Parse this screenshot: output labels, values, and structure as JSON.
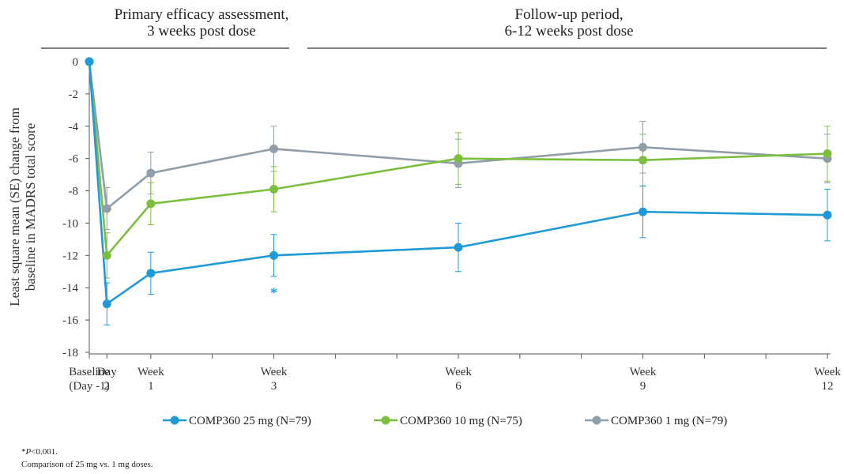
{
  "periods": [
    {
      "line1": "Primary efficacy assessment,",
      "line2": "3 weeks post dose"
    },
    {
      "line1": "Follow-up period,",
      "line2": "6-12 weeks post dose"
    }
  ],
  "footnotes": {
    "significance_prefix": "*",
    "significance_p": "P",
    "significance_rest": "<0.001.",
    "comparison": "Comparison of 25 mg vs. 1 mg doses."
  },
  "chart_data": {
    "type": "line",
    "ylabel_line1": "Least square mean (SE) change from",
    "ylabel_line2": "baseline in MADRS total score",
    "ylim": [
      -18,
      0
    ],
    "yticks": [
      0,
      -2,
      -4,
      -6,
      -8,
      -10,
      -12,
      -14,
      -16,
      -18
    ],
    "ytick_labels": [
      "0",
      "-2",
      "-4",
      "-6",
      "-8",
      "-10",
      "-12",
      "-14",
      "-16",
      "-18"
    ],
    "x_days": [
      0,
      2,
      7,
      21,
      42,
      63,
      84
    ],
    "xtick_labels": [
      {
        "line1": "Baseline",
        "line2": "(Day -1)"
      },
      {
        "line1": "Day",
        "line2": "2"
      },
      {
        "line1": "Week",
        "line2": "1"
      },
      {
        "line1": "Week",
        "line2": "3"
      },
      {
        "line1": "Week",
        "line2": "6"
      },
      {
        "line1": "Week",
        "line2": "9"
      },
      {
        "line1": "Week",
        "line2": "12"
      }
    ],
    "series": [
      {
        "name": "COMP360 25 mg (N=79)",
        "color": "#1f9ad6",
        "values": [
          0,
          -15.0,
          -13.1,
          -12.0,
          -11.5,
          -9.3,
          -9.5
        ],
        "se": [
          0,
          1.3,
          1.3,
          1.3,
          1.5,
          1.6,
          1.6
        ]
      },
      {
        "name": "COMP360 10 mg (N=75)",
        "color": "#7cbf3f",
        "values": [
          0,
          -12.0,
          -8.8,
          -7.9,
          -6.0,
          -6.1,
          -5.7
        ],
        "se": [
          0,
          1.4,
          1.3,
          1.4,
          1.6,
          1.6,
          1.7
        ]
      },
      {
        "name": "COMP360 1 mg (N=79)",
        "color": "#8f9ea8",
        "values": [
          0,
          -9.1,
          -6.9,
          -5.4,
          -6.3,
          -5.3,
          -6.0
        ],
        "se": [
          0,
          1.3,
          1.3,
          1.4,
          1.5,
          1.6,
          1.5
        ]
      }
    ],
    "annotations": [
      {
        "text": "*",
        "x_index": 3,
        "y": -14.2,
        "color": "#1f9ad6"
      }
    ],
    "legend_position": "bottom",
    "grid": false
  }
}
